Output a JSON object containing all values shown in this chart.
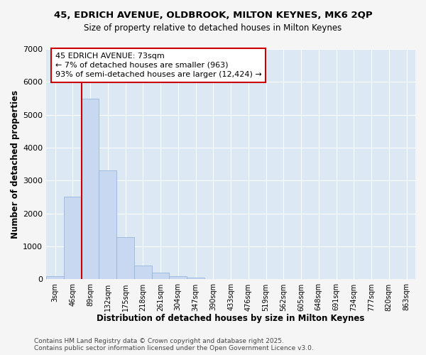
{
  "title_line1": "45, EDRICH AVENUE, OLDBROOK, MILTON KEYNES, MK6 2QP",
  "title_line2": "Size of property relative to detached houses in Milton Keynes",
  "xlabel": "Distribution of detached houses by size in Milton Keynes",
  "ylabel": "Number of detached properties",
  "categories": [
    "3sqm",
    "46sqm",
    "89sqm",
    "132sqm",
    "175sqm",
    "218sqm",
    "261sqm",
    "304sqm",
    "347sqm",
    "390sqm",
    "433sqm",
    "476sqm",
    "519sqm",
    "562sqm",
    "605sqm",
    "648sqm",
    "691sqm",
    "734sqm",
    "777sqm",
    "820sqm",
    "863sqm"
  ],
  "values": [
    90,
    2520,
    5500,
    3320,
    1290,
    420,
    210,
    90,
    50,
    0,
    0,
    0,
    0,
    0,
    0,
    0,
    0,
    0,
    0,
    0,
    0
  ],
  "bar_color": "#c8d8f0",
  "bar_edge_color": "#8ab0d8",
  "annotation_text": "45 EDRICH AVENUE: 73sqm\n← 7% of detached houses are smaller (963)\n93% of semi-detached houses are larger (12,424) →",
  "annotation_box_color": "#ffffff",
  "annotation_box_edge_color": "#cc0000",
  "vline_color": "#cc0000",
  "vline_x": 1.5,
  "ylim": [
    0,
    7000
  ],
  "yticks": [
    0,
    1000,
    2000,
    3000,
    4000,
    5000,
    6000,
    7000
  ],
  "bg_color": "#dde8f5",
  "grid_color": "#ffffff",
  "fig_bg_color": "#f5f5f5",
  "footer_text": "Contains HM Land Registry data © Crown copyright and database right 2025.\nContains public sector information licensed under the Open Government Licence v3.0.",
  "title_fontsize": 9.5,
  "subtitle_fontsize": 8.5,
  "axis_label_fontsize": 8.5,
  "tick_fontsize": 7,
  "annotation_fontsize": 8,
  "footer_fontsize": 6.5
}
